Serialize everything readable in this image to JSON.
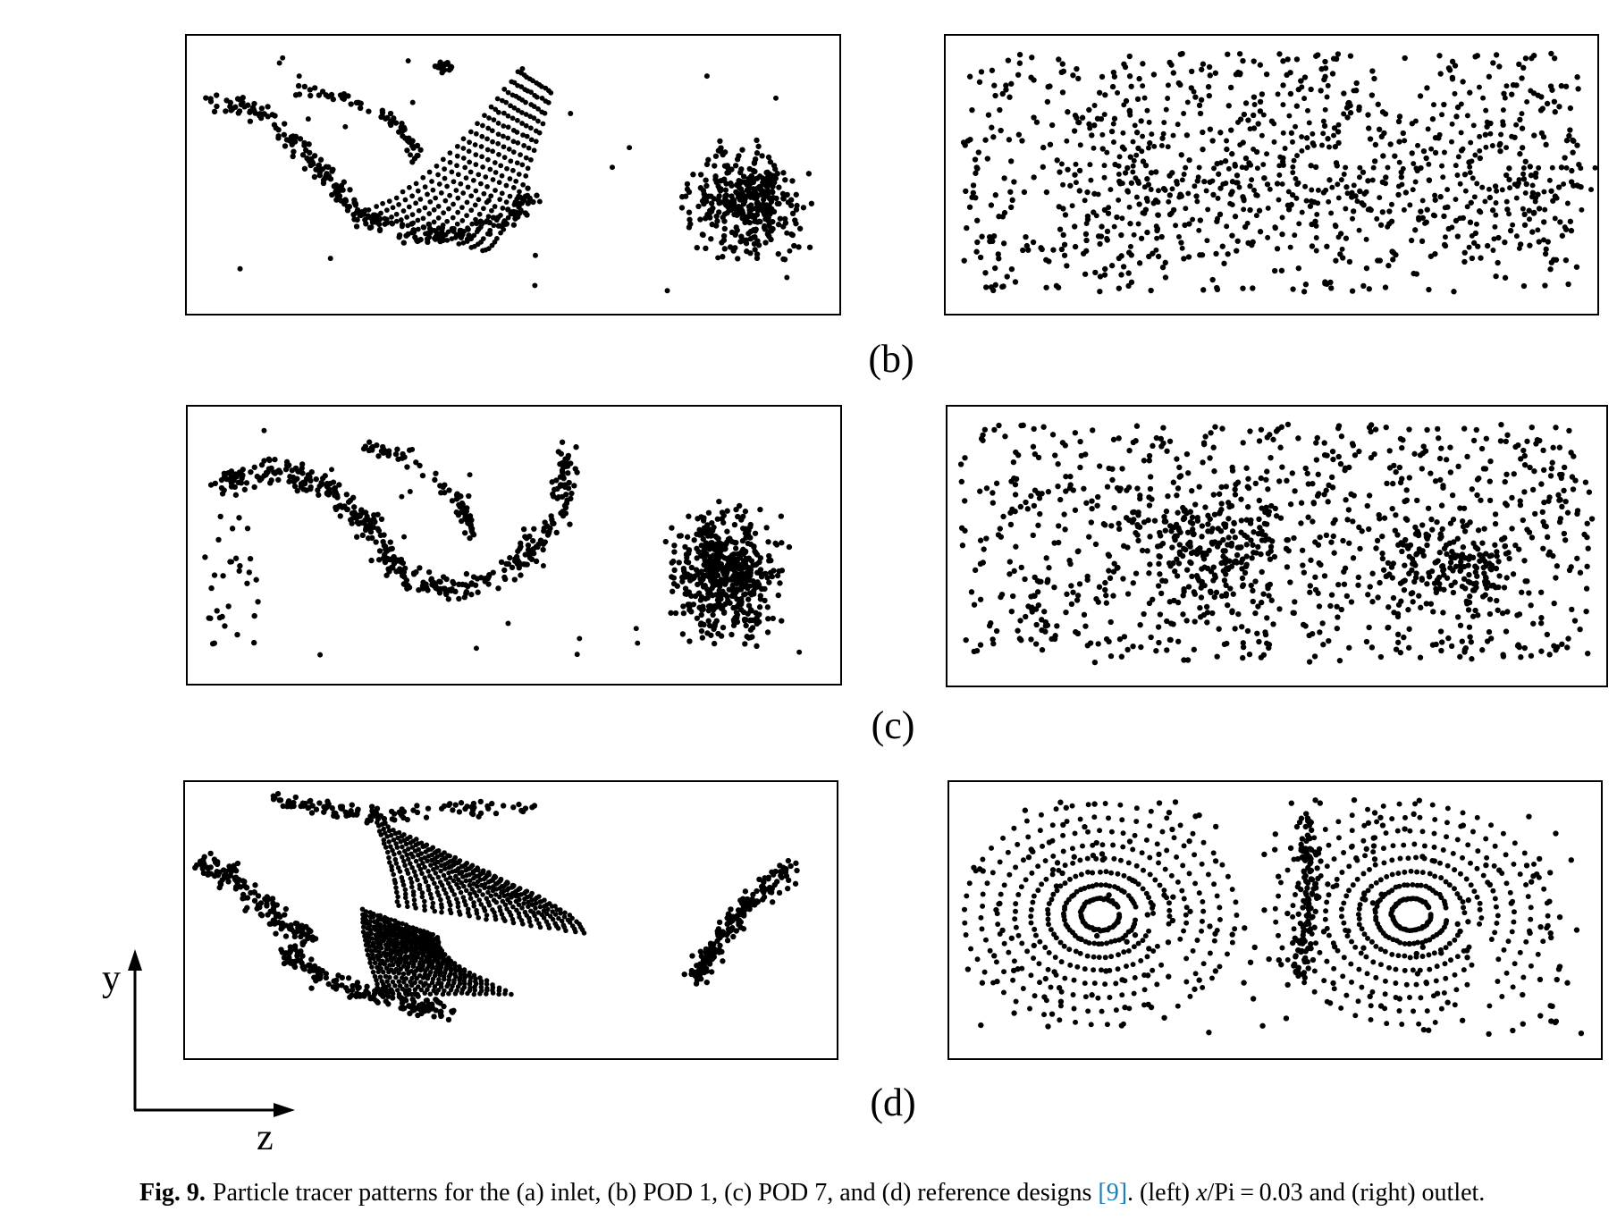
{
  "rows": [
    {
      "label": "(b)",
      "panels": [
        {
          "pattern": "inlet-spiral-b"
        },
        {
          "pattern": "outlet-mixed-b"
        }
      ]
    },
    {
      "label": "(c)",
      "panels": [
        {
          "pattern": "inlet-spiral-c"
        },
        {
          "pattern": "outlet-mixed-c"
        }
      ]
    },
    {
      "label": "(d)",
      "panels": [
        {
          "pattern": "inlet-streaks-d"
        },
        {
          "pattern": "outlet-vortices-d"
        }
      ]
    }
  ],
  "axes": {
    "y_label": "y",
    "z_label": "z"
  },
  "caption": {
    "figno": "Fig. 9.",
    "text_before_ref": "Particle tracer patterns for the (a) inlet, (b) POD 1, (c) POD 7, and (d) reference designs ",
    "ref": "[9]",
    "text_after_ref_1": ". (left) ",
    "italic_x": "x",
    "text_after_ref_2": "/Pi = 0.03 and (right) outlet."
  },
  "colors": {
    "dots": "#000000",
    "ref_link": "#1e7fb8"
  }
}
